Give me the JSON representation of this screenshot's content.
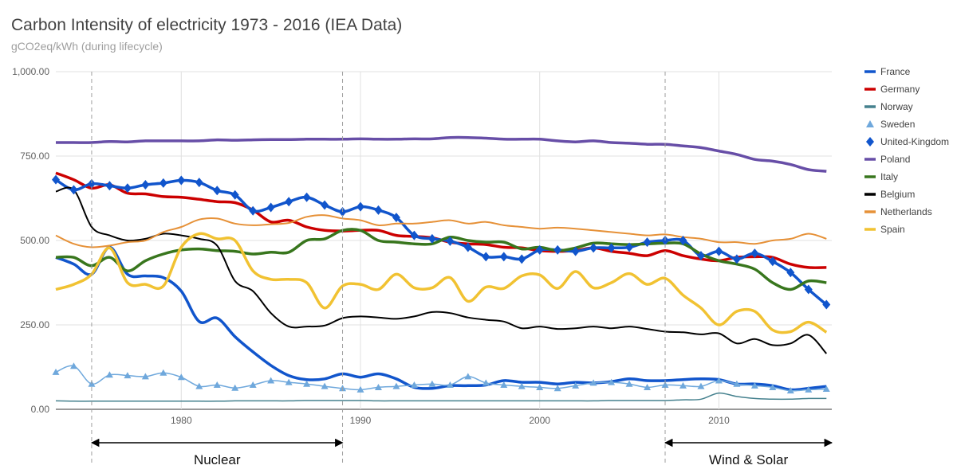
{
  "chart_data": {
    "type": "line",
    "title": "Carbon Intensity of electricity 1973 - 2016 (IEA Data)",
    "subtitle": "gCO2eq/kWh (during lifecycle)",
    "xlabel": "",
    "ylabel": "",
    "xlim": [
      1973,
      2016.3
    ],
    "ylim": [
      0,
      1000
    ],
    "xticks": [
      1980,
      1990,
      2000,
      2010
    ],
    "yticks": [
      0,
      250,
      500,
      750,
      1000
    ],
    "ytick_labels": [
      "0.00",
      "250.00",
      "500.00",
      "750.00",
      "1,000.00"
    ],
    "grid": true,
    "legend_position": "right",
    "x": [
      1973,
      1974,
      1975,
      1976,
      1977,
      1978,
      1979,
      1980,
      1981,
      1982,
      1983,
      1984,
      1985,
      1986,
      1987,
      1988,
      1989,
      1990,
      1991,
      1992,
      1993,
      1994,
      1995,
      1996,
      1997,
      1998,
      1999,
      2000,
      2001,
      2002,
      2003,
      2004,
      2005,
      2006,
      2007,
      2008,
      2009,
      2010,
      2011,
      2012,
      2013,
      2014,
      2015,
      2016
    ],
    "series": [
      {
        "name": "France",
        "color": "#1155cc",
        "width": 3.5,
        "marker": "none",
        "values": [
          450,
          430,
          400,
          480,
          400,
          395,
          390,
          350,
          260,
          270,
          215,
          170,
          130,
          100,
          88,
          90,
          105,
          95,
          105,
          90,
          65,
          62,
          70,
          70,
          72,
          85,
          80,
          80,
          75,
          80,
          78,
          82,
          90,
          85,
          85,
          88,
          90,
          88,
          75,
          75,
          70,
          58,
          62,
          68
        ]
      },
      {
        "name": "Germany",
        "color": "#cc0000",
        "width": 3.5,
        "marker": "none",
        "values": [
          700,
          680,
          655,
          665,
          640,
          638,
          630,
          628,
          622,
          615,
          612,
          590,
          555,
          560,
          540,
          530,
          528,
          530,
          530,
          515,
          512,
          508,
          495,
          490,
          488,
          480,
          478,
          470,
          468,
          470,
          478,
          468,
          462,
          455,
          470,
          455,
          445,
          440,
          450,
          452,
          450,
          430,
          420,
          420
        ]
      },
      {
        "name": "Norway",
        "color": "#45818e",
        "width": 1.5,
        "marker": "none",
        "values": [
          25,
          24,
          24,
          24,
          24,
          24,
          24,
          24,
          24,
          24,
          25,
          25,
          25,
          25,
          26,
          26,
          26,
          26,
          25,
          25,
          25,
          25,
          25,
          25,
          25,
          25,
          25,
          25,
          25,
          25,
          25,
          26,
          26,
          26,
          26,
          28,
          30,
          48,
          38,
          32,
          30,
          30,
          32,
          32
        ]
      },
      {
        "name": "Sweden",
        "color": "#6fa8dc",
        "width": 1.5,
        "marker": "triangle",
        "values": [
          110,
          128,
          75,
          102,
          100,
          97,
          108,
          95,
          68,
          72,
          63,
          72,
          85,
          80,
          75,
          68,
          62,
          58,
          65,
          68,
          72,
          75,
          72,
          97,
          78,
          72,
          68,
          65,
          62,
          70,
          78,
          80,
          75,
          65,
          72,
          70,
          68,
          85,
          75,
          70,
          65,
          55,
          58,
          60
        ]
      },
      {
        "name": "United-Kingdom",
        "color": "#1155cc",
        "width": 3.5,
        "marker": "diamond",
        "values": [
          680,
          650,
          668,
          662,
          655,
          665,
          670,
          678,
          672,
          648,
          635,
          588,
          598,
          615,
          628,
          605,
          585,
          600,
          590,
          568,
          515,
          505,
          498,
          480,
          452,
          452,
          445,
          472,
          472,
          468,
          478,
          478,
          480,
          495,
          500,
          500,
          455,
          468,
          445,
          462,
          438,
          405,
          355,
          310
        ]
      },
      {
        "name": "Poland",
        "color": "#674ea7",
        "width": 3.5,
        "marker": "none",
        "values": [
          790,
          790,
          790,
          793,
          792,
          795,
          795,
          795,
          795,
          798,
          797,
          798,
          799,
          799,
          800,
          800,
          800,
          801,
          800,
          800,
          801,
          801,
          805,
          805,
          803,
          800,
          800,
          800,
          795,
          792,
          795,
          790,
          788,
          785,
          785,
          780,
          775,
          765,
          755,
          740,
          735,
          725,
          710,
          705
        ]
      },
      {
        "name": "Italy",
        "color": "#38761d",
        "width": 3.5,
        "marker": "none",
        "values": [
          450,
          450,
          425,
          450,
          410,
          440,
          460,
          472,
          475,
          470,
          468,
          460,
          465,
          465,
          500,
          505,
          530,
          530,
          500,
          495,
          490,
          490,
          510,
          500,
          495,
          495,
          475,
          480,
          470,
          478,
          492,
          490,
          488,
          490,
          492,
          490,
          460,
          440,
          430,
          415,
          375,
          355,
          380,
          375
        ]
      },
      {
        "name": "Belgium",
        "color": "#000000",
        "width": 2,
        "marker": "none",
        "values": [
          645,
          650,
          540,
          515,
          500,
          505,
          520,
          515,
          505,
          485,
          380,
          350,
          285,
          245,
          245,
          248,
          270,
          275,
          272,
          268,
          275,
          288,
          285,
          272,
          265,
          260,
          240,
          245,
          238,
          240,
          245,
          240,
          245,
          238,
          230,
          228,
          222,
          225,
          195,
          208,
          190,
          195,
          220,
          165
        ]
      },
      {
        "name": "Netherlands",
        "color": "#e69138",
        "width": 2,
        "marker": "none",
        "values": [
          515,
          490,
          480,
          485,
          495,
          500,
          525,
          540,
          562,
          565,
          550,
          545,
          548,
          552,
          570,
          575,
          565,
          560,
          545,
          550,
          550,
          555,
          560,
          550,
          555,
          545,
          540,
          535,
          538,
          535,
          530,
          525,
          520,
          515,
          518,
          510,
          505,
          495,
          495,
          490,
          500,
          505,
          520,
          505
        ]
      },
      {
        "name": "Spain",
        "color": "#f1c232",
        "width": 3.5,
        "marker": "none",
        "values": [
          355,
          370,
          400,
          478,
          375,
          370,
          365,
          480,
          520,
          505,
          500,
          410,
          385,
          385,
          375,
          300,
          365,
          370,
          355,
          400,
          360,
          360,
          390,
          320,
          362,
          358,
          395,
          398,
          358,
          408,
          360,
          375,
          402,
          370,
          388,
          338,
          300,
          250,
          290,
          290,
          235,
          230,
          258,
          228
        ]
      }
    ],
    "annotations": [
      {
        "label": "Nuclear",
        "from": 1975,
        "to": 1989
      },
      {
        "label": "Wind & Solar",
        "from": 2007,
        "to": 2016.3
      }
    ]
  }
}
